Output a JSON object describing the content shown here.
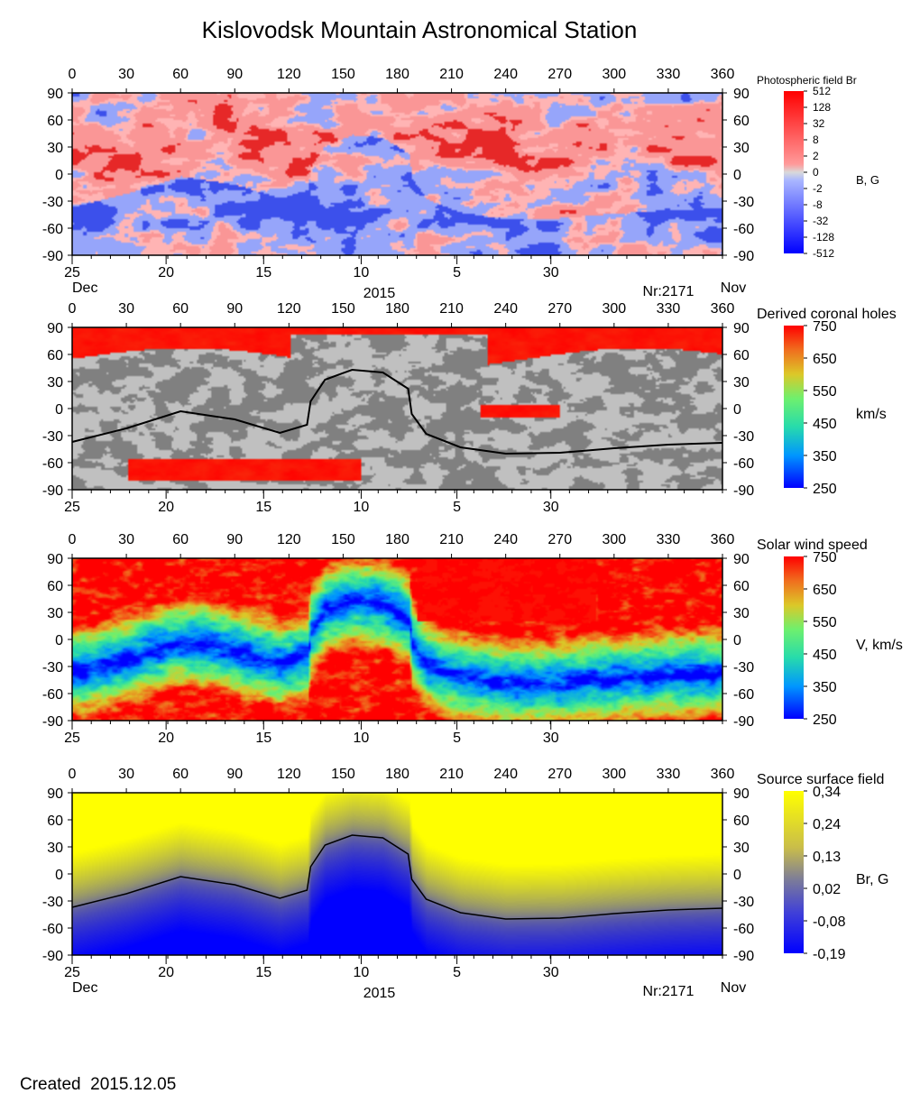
{
  "title": "Kislovodsk Mountain Astronomical Station",
  "footer": {
    "created_label": "Created",
    "created_date": "2015.12.05"
  },
  "chart_data": [
    {
      "type": "heatmap",
      "title": "Photospheric field Br",
      "colorbar_unit": "B, G",
      "colorbar_ticks": [
        "512",
        "128",
        "32",
        "8",
        "2",
        "0",
        "-2",
        "-8",
        "-32",
        "-128",
        "-512"
      ],
      "colors": {
        "positive": "#ff0000",
        "positive_weak": "#ff9a9a",
        "zero": "#d9d9d9",
        "negative_weak": "#a9b6ff",
        "negative": "#0000ff"
      },
      "x_top_ticks": [
        "0",
        "30",
        "60",
        "90",
        "120",
        "150",
        "180",
        "210",
        "240",
        "270",
        "300",
        "330",
        "360"
      ],
      "y_ticks": [
        "90",
        "60",
        "30",
        "0",
        "-30",
        "-60",
        "-90"
      ],
      "xlim": [
        0,
        360
      ],
      "ylim": [
        -90,
        90
      ],
      "date_ticks": [
        {
          "label": "25",
          "lon": 0
        },
        {
          "label": "20",
          "lon": 52
        },
        {
          "label": "15",
          "lon": 106
        },
        {
          "label": "10",
          "lon": 160
        },
        {
          "label": "5",
          "lon": 213
        },
        {
          "label": "30",
          "lon": 265
        }
      ],
      "month_left": "Dec",
      "year": "2015",
      "rotation_label": "Nr:2171",
      "month_right": "Nov"
    },
    {
      "type": "heatmap",
      "title": "Derived coronal holes",
      "colorbar_unit": "km/s",
      "colorbar_ticks": [
        "750",
        "650",
        "550",
        "450",
        "350",
        "250"
      ],
      "x_top_ticks": [
        "0",
        "30",
        "60",
        "90",
        "120",
        "150",
        "180",
        "210",
        "240",
        "270",
        "300",
        "330",
        "360"
      ],
      "y_ticks": [
        "90",
        "60",
        "30",
        "0",
        "-30",
        "-60",
        "-90"
      ],
      "xlim": [
        0,
        360
      ],
      "ylim": [
        -90,
        90
      ],
      "date_ticks": [
        {
          "label": "25",
          "lon": 0
        },
        {
          "label": "20",
          "lon": 52
        },
        {
          "label": "15",
          "lon": 106
        },
        {
          "label": "10",
          "lon": 160
        },
        {
          "label": "5",
          "lon": 213
        },
        {
          "label": "30",
          "lon": 265
        }
      ],
      "neutral_line": [
        [
          0,
          -37
        ],
        [
          30,
          -22
        ],
        [
          60,
          -3
        ],
        [
          90,
          -12
        ],
        [
          115,
          -27
        ],
        [
          130,
          -18
        ],
        [
          132,
          8
        ],
        [
          140,
          32
        ],
        [
          155,
          43
        ],
        [
          172,
          40
        ],
        [
          186,
          22
        ],
        [
          188,
          -6
        ],
        [
          196,
          -28
        ],
        [
          215,
          -43
        ],
        [
          240,
          -50
        ],
        [
          270,
          -49
        ],
        [
          300,
          -44
        ],
        [
          330,
          -40
        ],
        [
          360,
          -38
        ]
      ]
    },
    {
      "type": "heatmap",
      "title": "Solar wind speed",
      "colorbar_unit": "V, km/s",
      "colorbar_ticks": [
        "750",
        "650",
        "550",
        "450",
        "350",
        "250"
      ],
      "x_top_ticks": [
        "0",
        "30",
        "60",
        "90",
        "120",
        "150",
        "180",
        "210",
        "240",
        "270",
        "300",
        "330",
        "360"
      ],
      "y_ticks": [
        "90",
        "60",
        "30",
        "0",
        "-30",
        "-60",
        "-90"
      ],
      "xlim": [
        0,
        360
      ],
      "ylim": [
        -90,
        90
      ],
      "date_ticks": [
        {
          "label": "25",
          "lon": 0
        },
        {
          "label": "20",
          "lon": 52
        },
        {
          "label": "15",
          "lon": 106
        },
        {
          "label": "10",
          "lon": 160
        },
        {
          "label": "5",
          "lon": 213
        },
        {
          "label": "30",
          "lon": 265
        }
      ]
    },
    {
      "type": "heatmap",
      "title": "Source surface field",
      "colorbar_unit": "Br, G",
      "colorbar_ticks": [
        "0,34",
        "0,24",
        "0,13",
        "0,02",
        "-0,08",
        "-0,19"
      ],
      "x_top_ticks": [
        "0",
        "30",
        "60",
        "90",
        "120",
        "150",
        "180",
        "210",
        "240",
        "270",
        "300",
        "330",
        "360"
      ],
      "y_ticks": [
        "90",
        "60",
        "30",
        "0",
        "-30",
        "-60",
        "-90"
      ],
      "xlim": [
        0,
        360
      ],
      "ylim": [
        -90,
        90
      ],
      "date_ticks": [
        {
          "label": "25",
          "lon": 0
        },
        {
          "label": "20",
          "lon": 52
        },
        {
          "label": "15",
          "lon": 106
        },
        {
          "label": "10",
          "lon": 160
        },
        {
          "label": "5",
          "lon": 213
        },
        {
          "label": "30",
          "lon": 265
        }
      ],
      "month_left": "Dec",
      "year": "2015",
      "rotation_label": "Nr:2171",
      "month_right": "Nov",
      "neutral_line": [
        [
          0,
          -37
        ],
        [
          30,
          -22
        ],
        [
          60,
          -3
        ],
        [
          90,
          -12
        ],
        [
          115,
          -27
        ],
        [
          130,
          -18
        ],
        [
          132,
          8
        ],
        [
          140,
          32
        ],
        [
          155,
          43
        ],
        [
          172,
          40
        ],
        [
          186,
          22
        ],
        [
          188,
          -6
        ],
        [
          196,
          -28
        ],
        [
          215,
          -43
        ],
        [
          240,
          -50
        ],
        [
          270,
          -49
        ],
        [
          300,
          -44
        ],
        [
          330,
          -40
        ],
        [
          360,
          -38
        ]
      ]
    }
  ]
}
